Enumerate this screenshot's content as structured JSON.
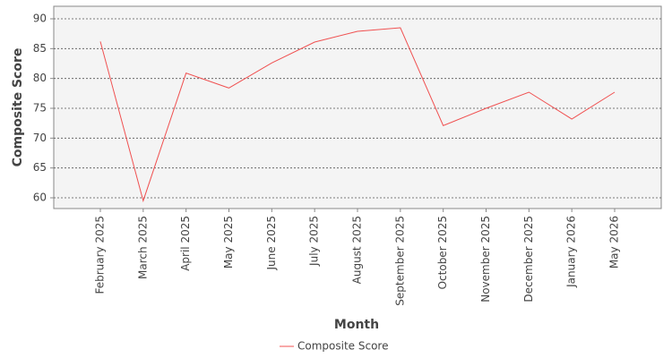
{
  "chart_data": {
    "type": "line",
    "x_label": "Month",
    "y_label": "Composite Score",
    "categories": [
      "February 2025",
      "March 2025",
      "April 2025",
      "May 2025",
      "June 2025",
      "July 2025",
      "August 2025",
      "September 2025",
      "October 2025",
      "November 2025",
      "December 2025",
      "January 2026",
      "May 2026"
    ],
    "series": [
      {
        "name": "Composite Score",
        "color": "#f05050",
        "values": [
          86.2,
          59.5,
          80.9,
          78.4,
          82.6,
          86.1,
          87.9,
          88.5,
          72.1,
          75.0,
          77.7,
          73.2,
          77.7
        ]
      }
    ],
    "ylim": [
      58.2,
      92.1
    ],
    "yticks": [
      60,
      65,
      70,
      75,
      80,
      85,
      90
    ],
    "grid": true,
    "legend": "bottom"
  }
}
